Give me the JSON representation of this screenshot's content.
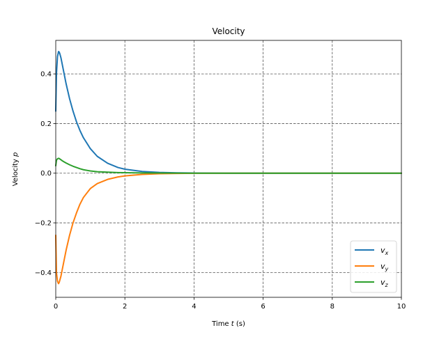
{
  "chart_data": {
    "type": "line",
    "title": "Velocity",
    "xlabel": "Time t (s)",
    "ylabel": "Velocity p",
    "xlim": [
      0,
      10
    ],
    "ylim": [
      -0.5,
      0.535
    ],
    "xticks": [
      0,
      2,
      4,
      6,
      8,
      10
    ],
    "yticks": [
      -0.4,
      -0.2,
      0.0,
      0.2,
      0.4
    ],
    "xtick_labels": [
      "0",
      "2",
      "4",
      "6",
      "8",
      "10"
    ],
    "ytick_labels": [
      "−0.4",
      "−0.2",
      "0.0",
      "0.2",
      "0.4"
    ],
    "grid": true,
    "grid_style": "dashed",
    "legend_position": "lower-right",
    "colors": {
      "vx": "#1f77b4",
      "vy": "#ff7f0e",
      "vz": "#2ca02c",
      "grid": "#555555"
    },
    "x": [
      0,
      0.02,
      0.05,
      0.08,
      0.1,
      0.12,
      0.15,
      0.2,
      0.25,
      0.3,
      0.4,
      0.5,
      0.6,
      0.7,
      0.8,
      1.0,
      1.2,
      1.5,
      1.8,
      2.0,
      2.5,
      3.0,
      3.5,
      4.0,
      5.0,
      6.0,
      7.0,
      8.0,
      9.0,
      10.0
    ],
    "series": [
      {
        "name": "v_x",
        "label_main": "v",
        "label_sub": "x",
        "values": [
          0.25,
          0.4,
          0.47,
          0.49,
          0.488,
          0.48,
          0.465,
          0.43,
          0.395,
          0.36,
          0.3,
          0.25,
          0.207,
          0.172,
          0.143,
          0.099,
          0.068,
          0.04,
          0.023,
          0.016,
          0.007,
          0.003,
          0.0015,
          0.0007,
          0.0001,
          0.0,
          0.0,
          0.0,
          0.0,
          0.0
        ]
      },
      {
        "name": "v_y",
        "label_main": "v",
        "label_sub": "y",
        "values": [
          -0.25,
          -0.4,
          -0.435,
          -0.445,
          -0.44,
          -0.43,
          -0.415,
          -0.38,
          -0.345,
          -0.31,
          -0.25,
          -0.2,
          -0.16,
          -0.125,
          -0.098,
          -0.062,
          -0.042,
          -0.025,
          -0.015,
          -0.011,
          -0.005,
          -0.002,
          -0.001,
          -0.0005,
          -0.0001,
          0.0,
          0.0,
          0.0,
          0.0,
          0.0
        ]
      },
      {
        "name": "v_z",
        "label_main": "v",
        "label_sub": "z",
        "values": [
          0.03,
          0.052,
          0.058,
          0.06,
          0.059,
          0.057,
          0.054,
          0.049,
          0.045,
          0.041,
          0.034,
          0.028,
          0.023,
          0.018,
          0.014,
          0.009,
          0.006,
          0.004,
          0.0025,
          0.002,
          0.001,
          0.0005,
          0.0002,
          0.0001,
          0.0,
          0.0,
          0.0,
          0.0,
          0.0,
          0.0
        ]
      }
    ]
  }
}
